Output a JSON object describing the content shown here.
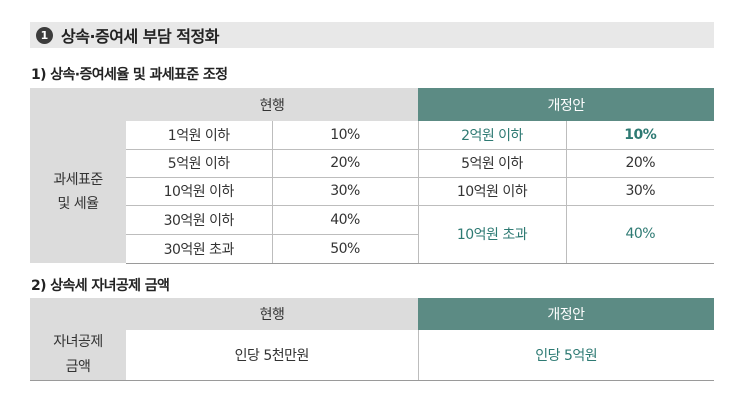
{
  "header": {
    "badge": "1",
    "title": "상속·증여세 부담 적정화"
  },
  "section1": {
    "title": "1) 상속·증여세율 및 과세표준 조정",
    "col_current": "현행",
    "col_new": "개정안",
    "row_header_line1": "과세표준",
    "row_header_line2": "및 세율",
    "current": [
      {
        "base": "1억원 이하",
        "rate": "10%"
      },
      {
        "base": "5억원 이하",
        "rate": "20%"
      },
      {
        "base": "10억원 이하",
        "rate": "30%"
      },
      {
        "base": "30억원 이하",
        "rate": "40%"
      },
      {
        "base": "30억원 초과",
        "rate": "50%"
      }
    ],
    "proposed": [
      {
        "base": "2억원 이하",
        "rate": "10%"
      },
      {
        "base": "5억원 이하",
        "rate": "20%"
      },
      {
        "base": "10억원 이하",
        "rate": "30%"
      },
      {
        "base": "10억원 초과",
        "rate": "40%"
      }
    ]
  },
  "section2": {
    "title": "2) 상속세 자녀공제 금액",
    "col_current": "현행",
    "col_new": "개정안",
    "row_header_line1": "자녀공제",
    "row_header_line2": "금액",
    "current_value": "인당 5천만원",
    "proposed_value": "인당 5억원"
  }
}
